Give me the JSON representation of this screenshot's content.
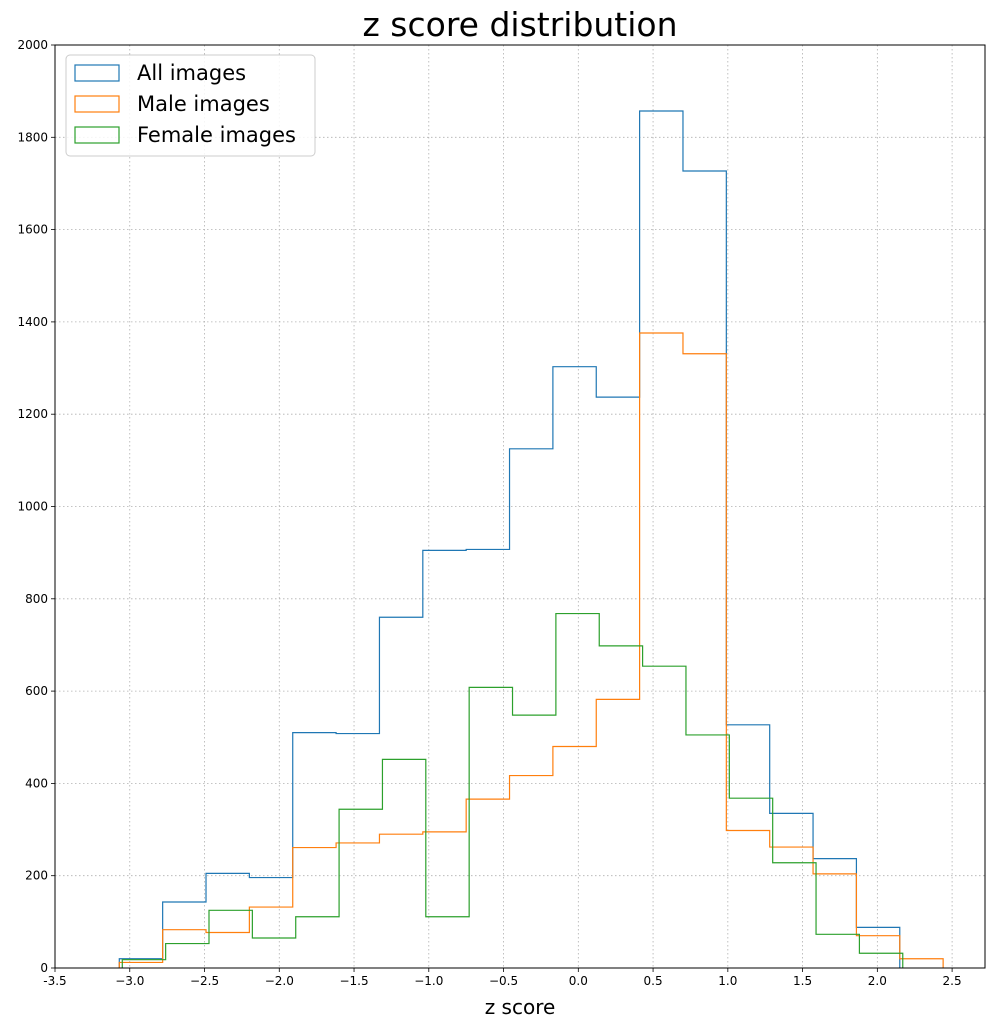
{
  "chart_data": {
    "type": "histogram",
    "title": "z score distribution",
    "xlabel": "z score",
    "ylabel": "",
    "xlim": [
      -3.5,
      2.72
    ],
    "ylim": [
      0,
      2000
    ],
    "x_ticks": [
      -3.5,
      -3.0,
      -2.5,
      -2.0,
      -1.5,
      -1.0,
      -0.5,
      0.0,
      0.5,
      1.0,
      1.5,
      2.0,
      2.5
    ],
    "x_tick_labels": [
      "-3.5",
      "−3.0",
      "−2.5",
      "−2.0",
      "−1.5",
      "−1.0",
      "−0.5",
      "0.0",
      "0.5",
      "1.0",
      "1.5",
      "2.0",
      "2.5"
    ],
    "y_ticks": [
      0,
      200,
      400,
      600,
      800,
      1000,
      1200,
      1400,
      1600,
      1800,
      2000
    ],
    "y_tick_labels": [
      "0",
      "200",
      "400",
      "600",
      "800",
      "1000",
      "1200",
      "1400",
      "1600",
      "1800",
      "2000"
    ],
    "grid": true,
    "legend_position": "top-left",
    "series": [
      {
        "name": "All images",
        "color": "#1f77b4",
        "edges": [
          -3.07,
          -2.78,
          -2.49,
          -2.2,
          -1.91,
          -1.62,
          -1.33,
          -1.04,
          -0.75,
          -0.46,
          -0.17,
          0.12,
          0.41,
          0.7,
          0.99,
          1.28,
          1.57,
          1.86,
          2.15
        ],
        "counts": [
          20,
          143,
          205,
          196,
          510,
          508,
          760,
          905,
          907,
          1125,
          1303,
          1237,
          1857,
          1727,
          527,
          335,
          237,
          88
        ]
      },
      {
        "name": "Male images",
        "color": "#ff7f0e",
        "edges": [
          -3.07,
          -2.78,
          -2.49,
          -2.2,
          -1.91,
          -1.62,
          -1.33,
          -1.04,
          -0.75,
          -0.46,
          -0.17,
          0.12,
          0.41,
          0.7,
          0.99,
          1.28,
          1.57,
          1.86,
          2.15,
          2.44
        ],
        "counts": [
          12,
          83,
          77,
          132,
          261,
          271,
          290,
          295,
          366,
          417,
          480,
          582,
          1376,
          1331,
          298,
          262,
          204,
          70,
          20
        ]
      },
      {
        "name": "Female images",
        "color": "#2ca02c",
        "edges": [
          -3.05,
          -2.76,
          -2.47,
          -2.18,
          -1.89,
          -1.6,
          -1.31,
          -1.02,
          -0.73,
          -0.44,
          -0.15,
          0.14,
          0.43,
          0.72,
          1.01,
          1.3,
          1.59,
          1.88,
          2.17
        ],
        "counts": [
          18,
          53,
          125,
          65,
          111,
          344,
          452,
          111,
          608,
          548,
          768,
          698,
          654,
          505,
          368,
          228,
          73,
          32
        ]
      }
    ]
  }
}
